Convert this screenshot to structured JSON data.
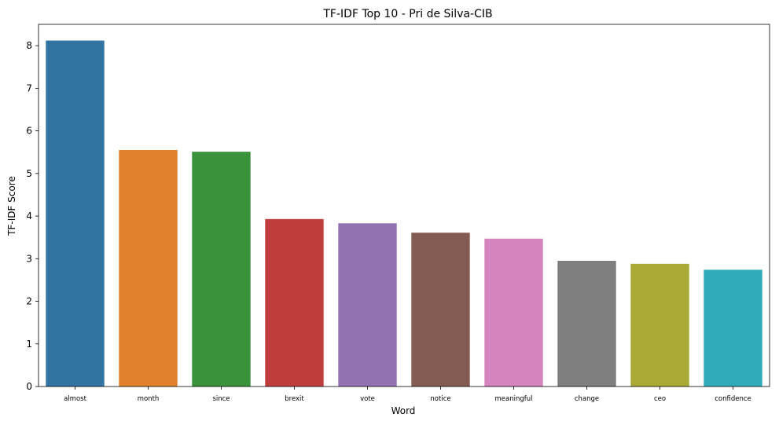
{
  "chart_data": {
    "type": "bar",
    "title": "TF-IDF Top 10 - Pri de Silva-CIB",
    "xlabel": "Word",
    "ylabel": "TF-IDF Score",
    "categories": [
      "almost",
      "month",
      "since",
      "brexit",
      "vote",
      "notice",
      "meaningful",
      "change",
      "ceo",
      "confidence"
    ],
    "values": [
      8.12,
      5.55,
      5.51,
      3.93,
      3.83,
      3.61,
      3.47,
      2.95,
      2.88,
      2.74
    ],
    "colors": [
      "#3274a1",
      "#e1812c",
      "#3a923a",
      "#c03d3e",
      "#9372b2",
      "#845b53",
      "#d684bd",
      "#7f7f7f",
      "#a9aa35",
      "#2eaab8"
    ],
    "yticks": [
      0,
      1,
      2,
      3,
      4,
      5,
      6,
      7,
      8
    ],
    "ylim": [
      0,
      8.5
    ],
    "grid": false,
    "legend": "none"
  }
}
